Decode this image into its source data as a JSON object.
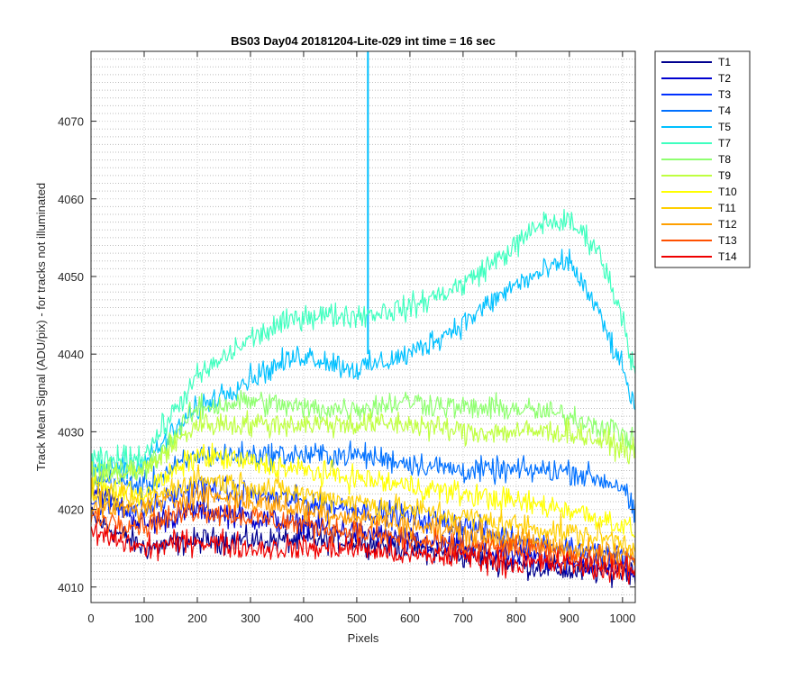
{
  "chart_data": {
    "type": "line",
    "title": "BS03 Day04 20181204-Lite-029 int time = 16 sec",
    "xlabel": "Pixels",
    "ylabel": "Track Mean Signal (ADU/pix) - for tracks not illuminated",
    "xlim": [
      0,
      1024
    ],
    "ylim": [
      4008,
      4079
    ],
    "x_ticks": [
      0,
      100,
      200,
      300,
      400,
      500,
      600,
      700,
      800,
      900,
      1000
    ],
    "y_ticks": [
      4010,
      4020,
      4030,
      4040,
      4050,
      4060,
      4070
    ],
    "grid": true,
    "minor_grid_y": true,
    "legend_position": "outside-top-right",
    "series": [
      {
        "name": "T1",
        "color": "#00008f",
        "x": [
          0,
          100,
          200,
          300,
          400,
          500,
          600,
          700,
          800,
          900,
          1000,
          1024
        ],
        "values": [
          4019,
          4015,
          4016,
          4016,
          4016,
          4016,
          4015,
          4014,
          4013,
          4012,
          4012,
          4012
        ]
      },
      {
        "name": "T2",
        "color": "#0000cf",
        "x": [
          0,
          100,
          200,
          300,
          400,
          500,
          600,
          700,
          800,
          900,
          1000,
          1024
        ],
        "values": [
          4023,
          4018,
          4020,
          4019,
          4018,
          4017,
          4016,
          4015,
          4014,
          4013,
          4013,
          4012
        ]
      },
      {
        "name": "T3",
        "color": "#0030ff",
        "x": [
          0,
          100,
          200,
          300,
          400,
          500,
          600,
          700,
          800,
          900,
          1000,
          1024
        ],
        "values": [
          4021,
          4020,
          4023,
          4022,
          4021,
          4020,
          4019,
          4018,
          4016,
          4015,
          4014,
          4013
        ]
      },
      {
        "name": "T4",
        "color": "#0070ff",
        "x": [
          0,
          100,
          200,
          300,
          400,
          500,
          600,
          700,
          800,
          900,
          1000,
          1024
        ],
        "values": [
          4024,
          4023,
          4027,
          4027,
          4027,
          4027,
          4026,
          4025,
          4025,
          4025,
          4023,
          4019
        ]
      },
      {
        "name": "T5",
        "color": "#00c0ff",
        "x": [
          0,
          100,
          200,
          300,
          400,
          500,
          600,
          700,
          800,
          900,
          950,
          1000,
          1024
        ],
        "values": [
          4025,
          4026,
          4033,
          4037,
          4040,
          4038,
          4040,
          4044,
          4049,
          4052,
          4046,
          4038,
          4033
        ],
        "spike": {
          "x": 521,
          "y_top": 4079,
          "y_bottom": 4040
        }
      },
      {
        "name": "T7",
        "color": "#3fffbf",
        "x": [
          0,
          100,
          200,
          300,
          400,
          500,
          600,
          700,
          800,
          850,
          900,
          950,
          1000,
          1024
        ],
        "values": [
          4026,
          4027,
          4037,
          4042,
          4045,
          4045,
          4046,
          4049,
          4054,
          4057,
          4057,
          4054,
          4045,
          4037
        ]
      },
      {
        "name": "T8",
        "color": "#8fff70",
        "x": [
          0,
          100,
          200,
          300,
          400,
          500,
          600,
          700,
          800,
          900,
          1000,
          1024
        ],
        "values": [
          4025,
          4025,
          4033,
          4034,
          4033,
          4033,
          4034,
          4033,
          4033,
          4032,
          4030,
          4028
        ]
      },
      {
        "name": "T9",
        "color": "#bfff40",
        "x": [
          0,
          100,
          200,
          300,
          400,
          500,
          600,
          700,
          800,
          900,
          1000,
          1024
        ],
        "values": [
          4024,
          4025,
          4031,
          4031,
          4031,
          4031,
          4031,
          4030,
          4030,
          4030,
          4028,
          4027
        ]
      },
      {
        "name": "T10",
        "color": "#ffff00",
        "x": [
          0,
          100,
          200,
          300,
          400,
          500,
          600,
          700,
          800,
          900,
          1000,
          1024
        ],
        "values": [
          4023,
          4022,
          4027,
          4026,
          4025,
          4024,
          4023,
          4022,
          4021,
          4020,
          4018,
          4017
        ]
      },
      {
        "name": "T11",
        "color": "#ffcf00",
        "x": [
          0,
          100,
          200,
          300,
          400,
          500,
          600,
          700,
          800,
          900,
          1000,
          1024
        ],
        "values": [
          4022,
          4021,
          4024,
          4023,
          4022,
          4021,
          4020,
          4019,
          4018,
          4017,
          4016,
          4015
        ]
      },
      {
        "name": "T12",
        "color": "#ff9f00",
        "x": [
          0,
          100,
          200,
          300,
          400,
          500,
          600,
          700,
          800,
          900,
          1000,
          1024
        ],
        "values": [
          4020,
          4020,
          4022,
          4021,
          4020,
          4019,
          4018,
          4017,
          4016,
          4015,
          4014,
          4014
        ]
      },
      {
        "name": "T13",
        "color": "#ff5000",
        "x": [
          0,
          100,
          200,
          300,
          400,
          500,
          600,
          700,
          800,
          900,
          1000,
          1024
        ],
        "values": [
          4019,
          4018,
          4020,
          4019,
          4018,
          4017,
          4016,
          4015,
          4015,
          4014,
          4013,
          4013
        ]
      },
      {
        "name": "T14",
        "color": "#ef0000",
        "x": [
          0,
          100,
          200,
          300,
          400,
          500,
          600,
          700,
          800,
          900,
          1000,
          1024
        ],
        "values": [
          4017,
          4015,
          4016,
          4015,
          4015,
          4015,
          4014,
          4014,
          4013,
          4013,
          4012,
          4012
        ]
      }
    ]
  }
}
